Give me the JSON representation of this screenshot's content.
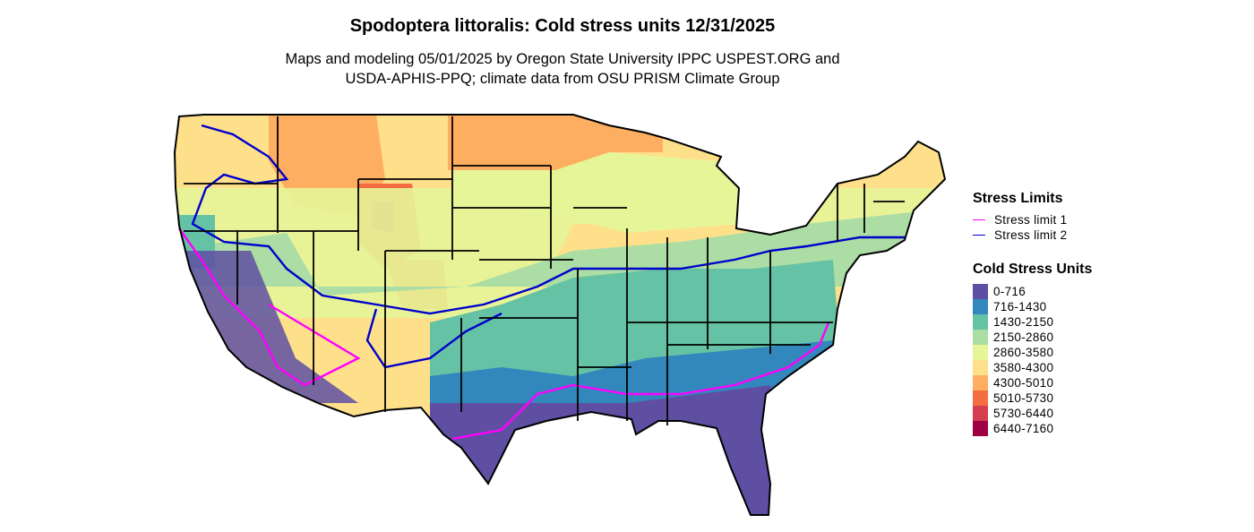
{
  "title": "Spodoptera littoralis: Cold stress units 12/31/2025",
  "subtitle": {
    "line1": "Maps and modeling 05/01/2025 by Oregon State University IPPC USPEST.ORG and",
    "line2": "USDA-APHIS-PPQ; climate data from OSU PRISM Climate Group"
  },
  "legend": {
    "limits_title": "Stress Limits",
    "limits": [
      {
        "label": "Stress limit 1",
        "color": "#ff00ff"
      },
      {
        "label": "Stress limit 2",
        "color": "#0000cc"
      }
    ],
    "units_title": "Cold Stress Units",
    "bins": [
      {
        "label": "0-716",
        "color": "#5e4fa2"
      },
      {
        "label": "716-1430",
        "color": "#3288bd"
      },
      {
        "label": "1430-2150",
        "color": "#66c2a5"
      },
      {
        "label": "2150-2860",
        "color": "#abdda4"
      },
      {
        "label": "2860-3580",
        "color": "#e6f598"
      },
      {
        "label": "3580-4300",
        "color": "#fee08b"
      },
      {
        "label": "4300-5010",
        "color": "#fdae61"
      },
      {
        "label": "5010-5730",
        "color": "#f46d43"
      },
      {
        "label": "5730-6440",
        "color": "#d53e4f"
      },
      {
        "label": "6440-7160",
        "color": "#9e0142"
      }
    ]
  }
}
